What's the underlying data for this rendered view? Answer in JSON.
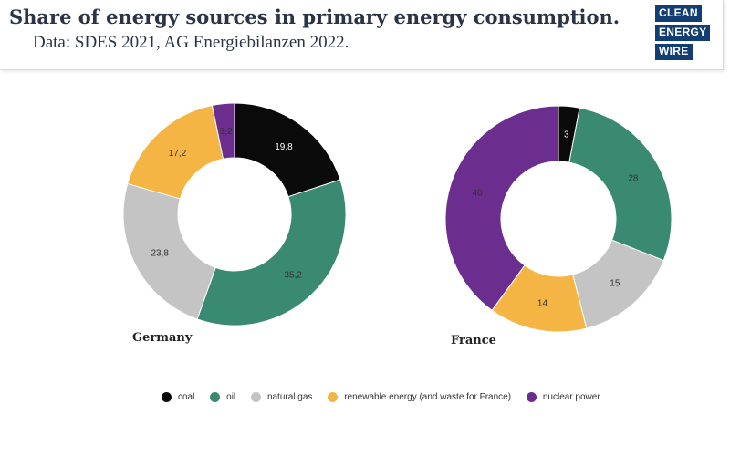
{
  "header": {
    "title": "Share of energy sources in primary energy consumption.",
    "subtitle": "Data: SDES 2021, AG Energiebilanzen 2022.",
    "logo_words": [
      "CLEAN",
      "ENERGY",
      "WIRE"
    ]
  },
  "colors": {
    "coal": "#0a0a0a",
    "oil": "#3a8a72",
    "natural_gas": "#c4c4c4",
    "renewable": "#f5b544",
    "nuclear": "#6b2d8e",
    "logo_bg": "#123e73"
  },
  "chart_data": [
    {
      "type": "pie",
      "name": "Germany",
      "categories": [
        "coal",
        "oil",
        "natural gas",
        "renewable energy (and waste for France)",
        "nuclear power"
      ],
      "values": [
        19.8,
        35.2,
        23.8,
        17.2,
        3.2
      ],
      "value_labels": [
        "19,8",
        "35,2",
        "23,8",
        "17,2",
        "3,2"
      ]
    },
    {
      "type": "pie",
      "name": "France",
      "categories": [
        "coal",
        "oil",
        "natural gas",
        "renewable energy (and waste for France)",
        "nuclear power"
      ],
      "values": [
        3,
        28,
        15,
        14,
        40
      ],
      "value_labels": [
        "3",
        "28",
        "15",
        "14",
        "40"
      ]
    }
  ],
  "legend": {
    "items": [
      "coal",
      "oil",
      "natural gas",
      "renewable energy (and waste for France)",
      "nuclear power"
    ],
    "placement": "bottom"
  }
}
